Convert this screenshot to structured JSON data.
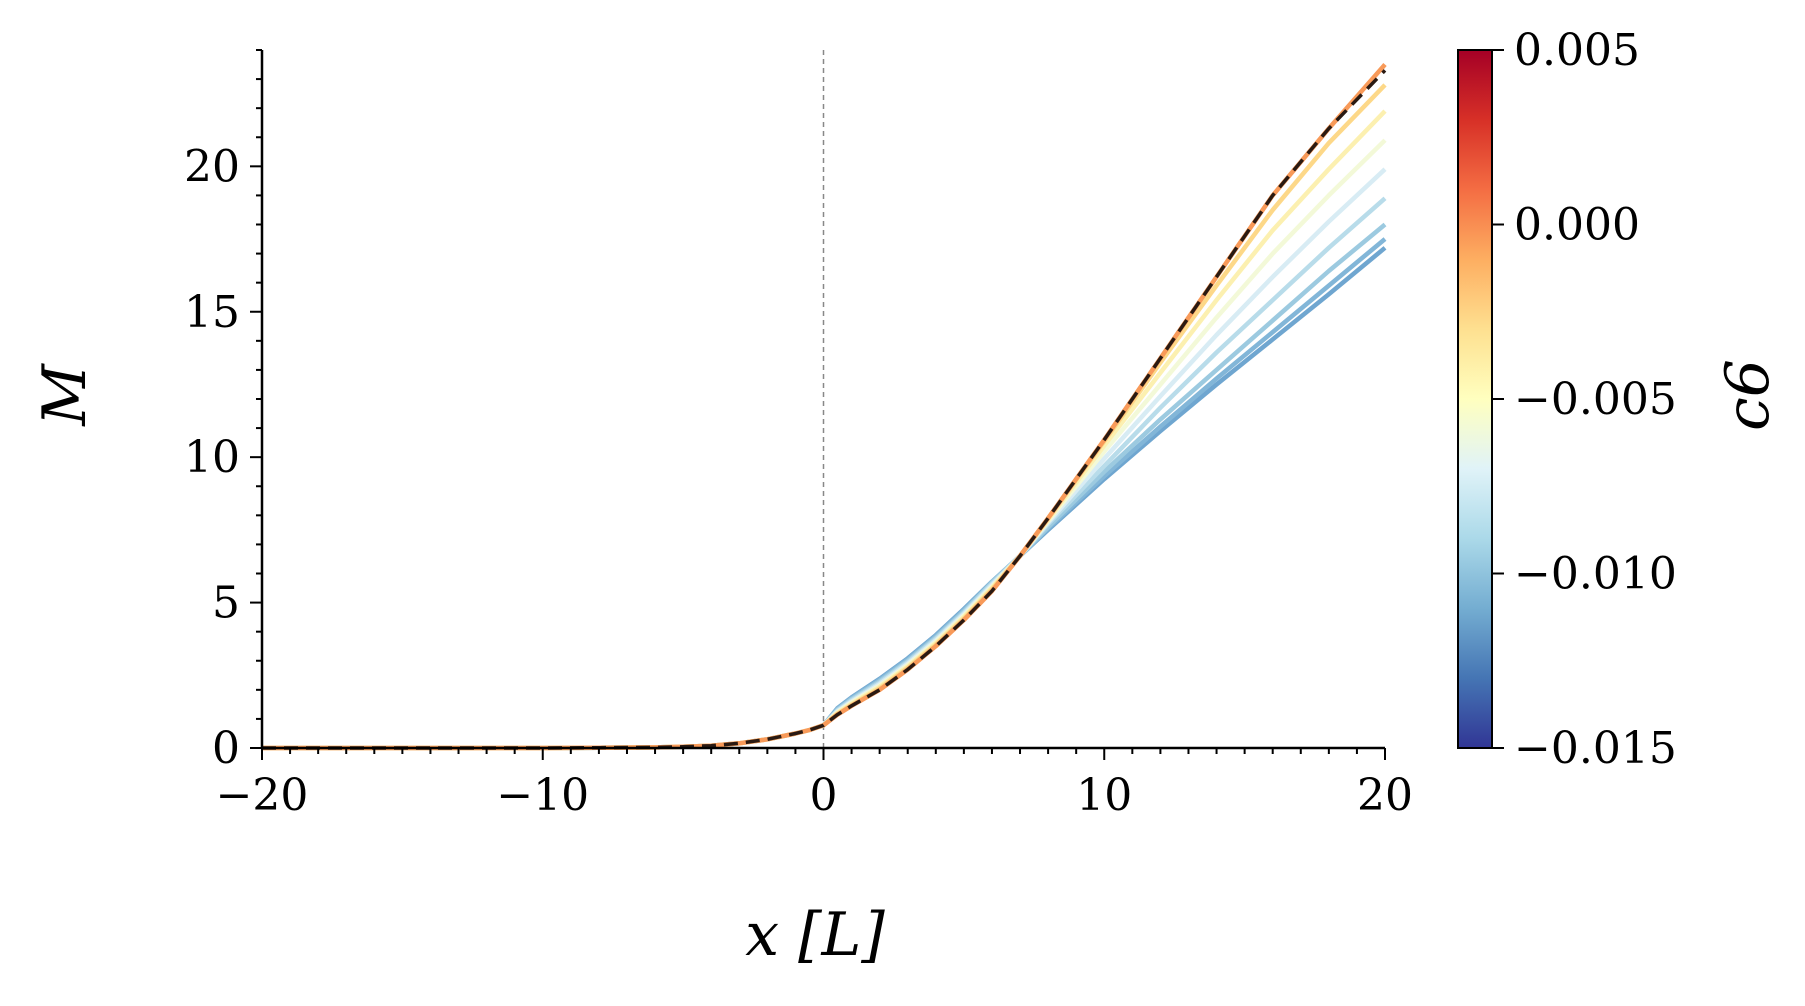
{
  "chart_data": {
    "type": "line",
    "xlabel": "x [L]",
    "ylabel": "M",
    "xlim": [
      -20,
      20
    ],
    "ylim": [
      0,
      24
    ],
    "x_ticks": [
      -20,
      -10,
      0,
      10,
      20
    ],
    "x_tick_labels": [
      "−20",
      "−10",
      "0",
      "10",
      "20"
    ],
    "y_ticks": [
      0,
      5,
      10,
      15,
      20
    ],
    "y_tick_labels": [
      "0",
      "5",
      "10",
      "15",
      "20"
    ],
    "vline_x": 0,
    "colorbar": {
      "label": "c6",
      "range": [
        -0.015,
        0.005
      ],
      "ticks": [
        0.005,
        0.0,
        -0.005,
        -0.01,
        -0.015
      ],
      "tick_labels": [
        "0.005",
        "0.000",
        "−0.005",
        "−0.010",
        "−0.015"
      ],
      "colormap": "RdYlBu_r"
    },
    "x": [
      -20,
      -15,
      -10,
      -8,
      -6,
      -5,
      -4,
      -3,
      -2,
      -1,
      -0.5,
      0,
      0.5,
      1,
      2,
      3,
      4,
      5,
      6,
      7,
      8,
      10,
      12,
      14,
      16,
      18,
      20
    ],
    "series": [
      {
        "c6": 0.0,
        "color": "#f89a59",
        "y": [
          0,
          0,
          0,
          0.01,
          0.02,
          0.04,
          0.08,
          0.16,
          0.3,
          0.5,
          0.62,
          0.78,
          1.15,
          1.45,
          2.0,
          2.7,
          3.5,
          4.4,
          5.4,
          6.6,
          7.9,
          10.6,
          13.4,
          16.2,
          19.0,
          21.3,
          23.5
        ]
      },
      {
        "c6": -0.001,
        "color": "#fdd888",
        "y": [
          0,
          0,
          0,
          0.01,
          0.02,
          0.04,
          0.08,
          0.16,
          0.3,
          0.5,
          0.62,
          0.78,
          1.17,
          1.48,
          2.05,
          2.75,
          3.55,
          4.45,
          5.45,
          6.6,
          7.9,
          10.55,
          13.25,
          15.9,
          18.5,
          20.8,
          22.8
        ]
      },
      {
        "c6": -0.003,
        "color": "#fcf0b0",
        "y": [
          0,
          0,
          0,
          0.01,
          0.02,
          0.04,
          0.08,
          0.16,
          0.3,
          0.5,
          0.62,
          0.78,
          1.2,
          1.52,
          2.1,
          2.8,
          3.6,
          4.5,
          5.5,
          6.6,
          7.85,
          10.4,
          12.9,
          15.4,
          17.8,
          19.9,
          21.9
        ]
      },
      {
        "c6": -0.005,
        "color": "#f3f9d8",
        "y": [
          0,
          0,
          0,
          0.01,
          0.02,
          0.04,
          0.08,
          0.16,
          0.3,
          0.5,
          0.62,
          0.78,
          1.23,
          1.56,
          2.15,
          2.85,
          3.65,
          4.55,
          5.55,
          6.6,
          7.8,
          10.2,
          12.5,
          14.8,
          17.0,
          19.0,
          20.9
        ]
      },
      {
        "c6": -0.007,
        "color": "#d8ecf4",
        "y": [
          0,
          0,
          0,
          0.01,
          0.02,
          0.04,
          0.08,
          0.16,
          0.3,
          0.5,
          0.62,
          0.78,
          1.26,
          1.6,
          2.2,
          2.9,
          3.7,
          4.6,
          5.6,
          6.6,
          7.75,
          9.95,
          12.1,
          14.2,
          16.2,
          18.1,
          19.9
        ]
      },
      {
        "c6": -0.009,
        "color": "#b8dcea",
        "y": [
          0,
          0,
          0,
          0.01,
          0.02,
          0.04,
          0.08,
          0.16,
          0.3,
          0.5,
          0.62,
          0.78,
          1.29,
          1.64,
          2.25,
          2.95,
          3.75,
          4.65,
          5.65,
          6.6,
          7.7,
          9.7,
          11.7,
          13.6,
          15.4,
          17.2,
          18.9
        ]
      },
      {
        "c6": -0.011,
        "color": "#9ccae0",
        "y": [
          0,
          0,
          0,
          0.01,
          0.02,
          0.04,
          0.08,
          0.16,
          0.3,
          0.5,
          0.62,
          0.78,
          1.32,
          1.68,
          2.3,
          3.0,
          3.8,
          4.7,
          5.7,
          6.6,
          7.6,
          9.5,
          11.3,
          13.0,
          14.7,
          16.4,
          18.0
        ]
      },
      {
        "c6": -0.013,
        "color": "#82b6d8",
        "y": [
          0,
          0,
          0,
          0.01,
          0.02,
          0.04,
          0.08,
          0.16,
          0.3,
          0.5,
          0.62,
          0.78,
          1.35,
          1.72,
          2.35,
          3.05,
          3.85,
          4.75,
          5.7,
          6.6,
          7.55,
          9.35,
          11.05,
          12.7,
          14.3,
          15.9,
          17.5
        ]
      },
      {
        "c6": -0.014,
        "color": "#6fa6d0",
        "y": [
          0,
          0,
          0,
          0.01,
          0.02,
          0.04,
          0.08,
          0.16,
          0.3,
          0.5,
          0.62,
          0.78,
          1.37,
          1.74,
          2.38,
          3.08,
          3.88,
          4.78,
          5.72,
          6.6,
          7.5,
          9.25,
          10.9,
          12.5,
          14.05,
          15.6,
          17.2
        ]
      }
    ],
    "reference": {
      "style": "dashed",
      "color": "#2a1a12",
      "y": [
        0,
        0,
        0,
        0.01,
        0.02,
        0.04,
        0.08,
        0.16,
        0.3,
        0.5,
        0.62,
        0.78,
        1.15,
        1.45,
        2.0,
        2.7,
        3.5,
        4.4,
        5.4,
        6.6,
        7.9,
        10.6,
        13.4,
        16.2,
        19.0,
        21.3,
        23.3
      ]
    }
  }
}
